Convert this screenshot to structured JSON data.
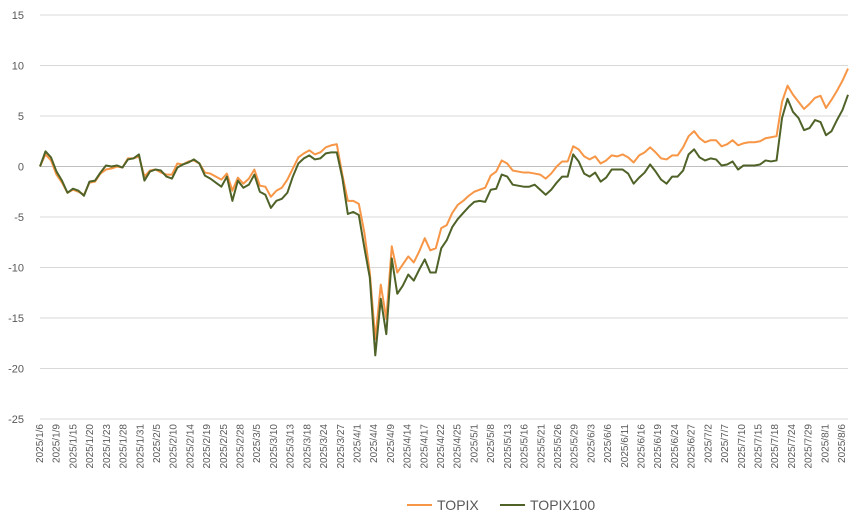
{
  "chart_data": {
    "type": "line",
    "title": "",
    "xlabel": "",
    "ylabel": "",
    "ylim": [
      -25,
      15
    ],
    "yticks": [
      15,
      10,
      5,
      0,
      -5,
      -10,
      -15,
      -20,
      -25
    ],
    "grid": "horizontal",
    "legend_position": "bottom",
    "x_tick_labels": [
      "2025/1/6",
      "2025/1/9",
      "2025/1/15",
      "2025/1/20",
      "2025/1/23",
      "2025/1/28",
      "2025/1/31",
      "2025/2/5",
      "2025/2/10",
      "2025/2/14",
      "2025/2/19",
      "2025/2/25",
      "2025/2/28",
      "2025/3/5",
      "2025/3/10",
      "2025/3/13",
      "2025/3/18",
      "2025/3/24",
      "2025/3/27",
      "2025/4/1",
      "2025/4/4",
      "2025/4/9",
      "2025/4/14",
      "2025/4/17",
      "2025/4/22",
      "2025/4/25",
      "2025/5/1",
      "2025/5/8",
      "2025/5/13",
      "2025/5/16",
      "2025/5/21",
      "2025/5/26",
      "2025/5/29",
      "2025/6/3",
      "2025/6/6",
      "2025/6/11",
      "2025/6/16",
      "2025/6/19",
      "2025/6/24",
      "2025/6/27",
      "2025/7/2",
      "2025/7/7",
      "2025/7/10",
      "2025/7/15",
      "2025/7/18",
      "2025/7/24",
      "2025/7/29",
      "2025/8/1",
      "2025/8/6"
    ],
    "series": [
      {
        "name": "TOPIX",
        "color": "#f79646",
        "values": [
          0.0,
          1.2,
          0.6,
          -0.8,
          -1.6,
          -2.6,
          -2.3,
          -2.5,
          -2.8,
          -1.6,
          -1.5,
          -0.7,
          -0.3,
          -0.2,
          0.0,
          -0.1,
          0.8,
          0.8,
          1.0,
          -1.0,
          -0.4,
          -0.3,
          -0.6,
          -0.8,
          -0.8,
          0.3,
          0.2,
          0.5,
          0.6,
          0.3,
          -0.6,
          -0.7,
          -1.0,
          -1.3,
          -0.7,
          -2.4,
          -1.1,
          -1.7,
          -1.2,
          -0.3,
          -1.9,
          -2.0,
          -3.0,
          -2.4,
          -2.1,
          -1.3,
          -0.2,
          0.9,
          1.3,
          1.6,
          1.2,
          1.4,
          1.9,
          2.1,
          2.2,
          -0.8,
          -3.4,
          -3.4,
          -3.7,
          -6.5,
          -10.5,
          -17.1,
          -11.7,
          -15.1,
          -7.9,
          -10.5,
          -9.7,
          -8.9,
          -9.5,
          -8.4,
          -7.1,
          -8.3,
          -8.1,
          -6.1,
          -5.8,
          -4.6,
          -3.8,
          -3.4,
          -2.9,
          -2.5,
          -2.3,
          -2.1,
          -0.9,
          -0.5,
          0.6,
          0.3,
          -0.4,
          -0.5,
          -0.6,
          -0.6,
          -0.7,
          -0.8,
          -1.2,
          -0.7,
          0.0,
          0.5,
          0.5,
          2.0,
          1.7,
          1.0,
          0.7,
          1.0,
          0.3,
          0.6,
          1.1,
          1.0,
          1.2,
          0.9,
          0.4,
          1.1,
          1.4,
          1.9,
          1.4,
          0.8,
          0.7,
          1.1,
          1.1,
          1.9,
          3.0,
          3.5,
          2.8,
          2.4,
          2.6,
          2.6,
          2.0,
          2.2,
          2.6,
          2.1,
          2.3,
          2.4,
          2.4,
          2.5,
          2.8,
          2.9,
          3.0,
          6.4,
          8.0,
          7.1,
          6.4,
          5.7,
          6.2,
          6.8,
          7.0,
          5.8,
          6.6,
          7.5,
          8.5,
          9.7
        ]
      },
      {
        "name": "TOPIX100",
        "color": "#4f6228",
        "values": [
          0.0,
          1.5,
          0.9,
          -0.5,
          -1.4,
          -2.6,
          -2.2,
          -2.4,
          -2.9,
          -1.5,
          -1.4,
          -0.6,
          0.1,
          0.0,
          0.1,
          -0.1,
          0.7,
          0.8,
          1.2,
          -1.4,
          -0.5,
          -0.3,
          -0.4,
          -1.0,
          -1.2,
          -0.1,
          0.2,
          0.4,
          0.7,
          0.3,
          -0.9,
          -1.2,
          -1.6,
          -2.0,
          -1.0,
          -3.4,
          -1.4,
          -2.1,
          -1.8,
          -0.8,
          -2.5,
          -2.8,
          -4.1,
          -3.4,
          -3.2,
          -2.6,
          -1.0,
          0.3,
          0.8,
          1.1,
          0.7,
          0.8,
          1.3,
          1.4,
          1.4,
          -1.1,
          -4.7,
          -4.5,
          -4.8,
          -8.0,
          -11.0,
          -18.7,
          -13.1,
          -16.6,
          -9.1,
          -12.6,
          -11.8,
          -10.7,
          -11.3,
          -10.2,
          -9.2,
          -10.5,
          -10.5,
          -8.1,
          -7.3,
          -6.0,
          -5.2,
          -4.6,
          -4.0,
          -3.5,
          -3.4,
          -3.5,
          -2.3,
          -2.2,
          -0.8,
          -1.0,
          -1.8,
          -1.9,
          -2.0,
          -2.0,
          -1.8,
          -2.3,
          -2.8,
          -2.3,
          -1.6,
          -1.0,
          -1.0,
          1.2,
          0.5,
          -0.7,
          -1.0,
          -0.6,
          -1.5,
          -1.1,
          -0.3,
          -0.3,
          -0.3,
          -0.7,
          -1.7,
          -1.1,
          -0.6,
          0.2,
          -0.5,
          -1.3,
          -1.7,
          -1.0,
          -1.0,
          -0.4,
          1.2,
          1.7,
          0.9,
          0.6,
          0.8,
          0.7,
          0.1,
          0.2,
          0.5,
          -0.3,
          0.1,
          0.1,
          0.1,
          0.2,
          0.6,
          0.5,
          0.6,
          4.8,
          6.7,
          5.4,
          4.8,
          3.6,
          3.8,
          4.6,
          4.4,
          3.1,
          3.5,
          4.6,
          5.6,
          7.1
        ]
      }
    ]
  }
}
